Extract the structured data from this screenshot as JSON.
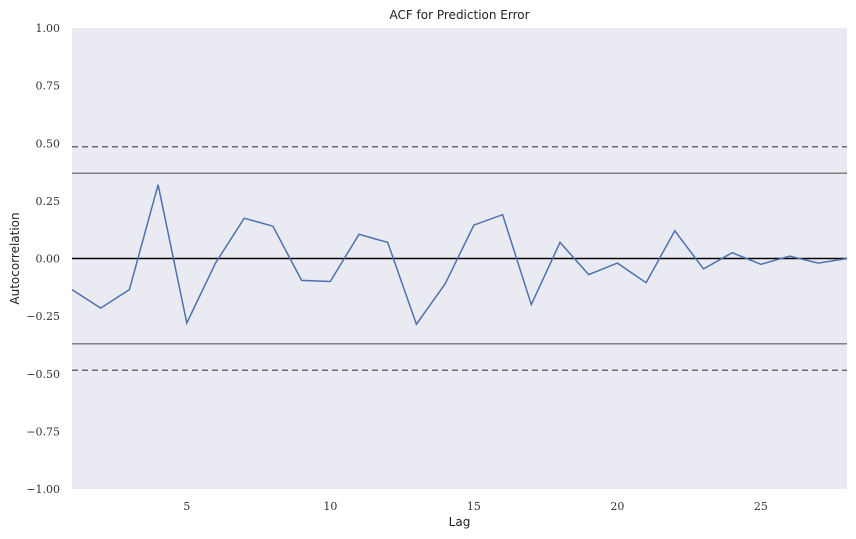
{
  "chart_data": {
    "type": "line",
    "title": "ACF for Prediction Error",
    "xlabel": "Lag",
    "ylabel": "Autocorrelation",
    "xlim": [
      1,
      28
    ],
    "ylim": [
      -1.0,
      1.0
    ],
    "xticks": [
      5,
      10,
      15,
      20,
      25
    ],
    "yticks": [
      -1.0,
      -0.75,
      -0.5,
      -0.25,
      0.0,
      0.25,
      0.5,
      0.75,
      1.0
    ],
    "ytick_labels": [
      "−1.00",
      "−0.75",
      "−0.50",
      "−0.25",
      "0.00",
      "0.25",
      "0.50",
      "0.75",
      "1.00"
    ],
    "grid": false,
    "series": [
      {
        "x": [
          1,
          2,
          3,
          4,
          5,
          6,
          7,
          8,
          9,
          10,
          11,
          12,
          13,
          14,
          15,
          16,
          17,
          18,
          19,
          20,
          21,
          22,
          23,
          24,
          25,
          26,
          27,
          28
        ],
        "values": [
          -0.135,
          -0.215,
          -0.135,
          0.32,
          -0.28,
          -0.02,
          0.175,
          0.14,
          -0.095,
          -0.1,
          0.105,
          0.07,
          -0.285,
          -0.11,
          0.145,
          0.19,
          -0.2,
          0.07,
          -0.07,
          -0.02,
          -0.105,
          0.12,
          -0.045,
          0.025,
          -0.025,
          0.01,
          -0.02,
          0.0
        ],
        "color": "#4c72b0"
      }
    ],
    "reference_lines": {
      "zero": 0.0,
      "solid_bounds": [
        0.37,
        -0.37
      ],
      "dashed_bounds": [
        0.485,
        -0.485
      ]
    },
    "colors": {
      "background": "#eaeaf2",
      "zero_line": "#000000",
      "solid_bound": "#808080",
      "dashed_bound": "#6b6b7a"
    }
  }
}
